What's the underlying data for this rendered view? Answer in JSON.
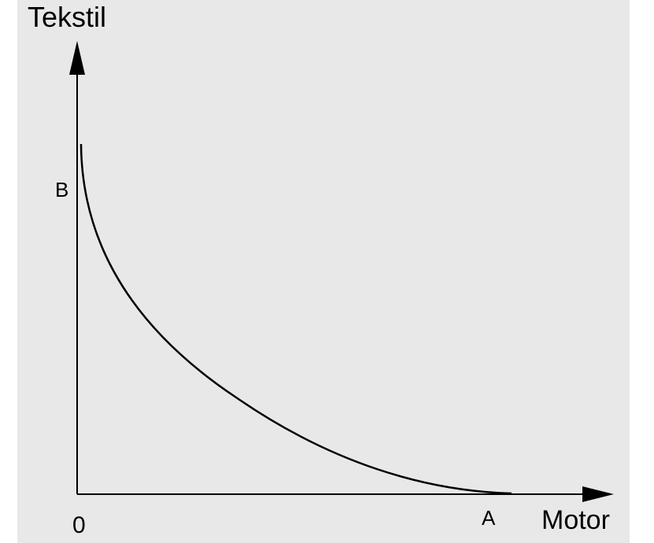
{
  "y_axis": {
    "label": "Tekstil",
    "point": "B"
  },
  "x_axis": {
    "label": "Motor",
    "point": "A"
  },
  "origin": "0"
}
